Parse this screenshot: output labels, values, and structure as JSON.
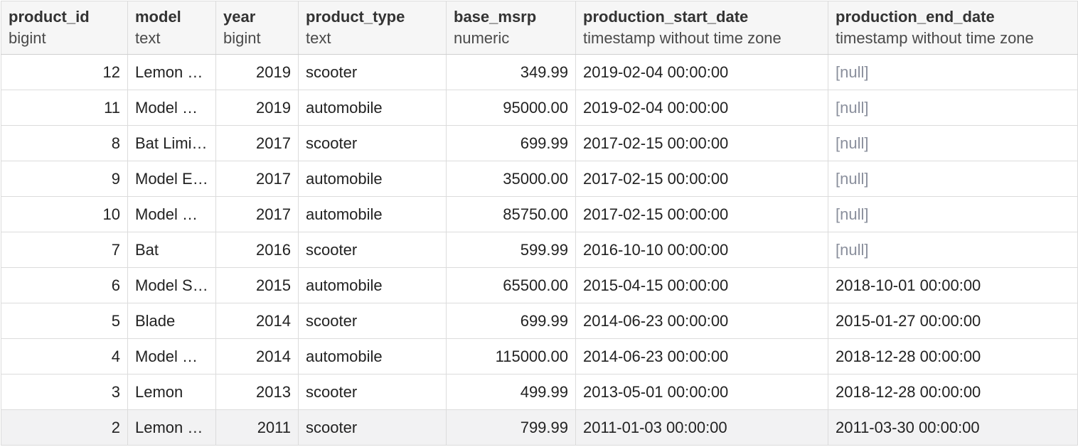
{
  "columns": [
    {
      "name": "product_id",
      "type": "bigint"
    },
    {
      "name": "model",
      "type": "text"
    },
    {
      "name": "year",
      "type": "bigint"
    },
    {
      "name": "product_type",
      "type": "text"
    },
    {
      "name": "base_msrp",
      "type": "numeric"
    },
    {
      "name": "production_start_date",
      "type": "timestamp without time zone"
    },
    {
      "name": "production_end_date",
      "type": "timestamp without time zone"
    }
  ],
  "rows": [
    [
      "12",
      "Lemon …",
      "2019",
      "scooter",
      "349.99",
      "2019-02-04 00:00:00",
      "[null]"
    ],
    [
      "11",
      "Model …",
      "2019",
      "automobile",
      "95000.00",
      "2019-02-04 00:00:00",
      "[null]"
    ],
    [
      "8",
      "Bat Limi…",
      "2017",
      "scooter",
      "699.99",
      "2017-02-15 00:00:00",
      "[null]"
    ],
    [
      "9",
      "Model E…",
      "2017",
      "automobile",
      "35000.00",
      "2017-02-15 00:00:00",
      "[null]"
    ],
    [
      "10",
      "Model …",
      "2017",
      "automobile",
      "85750.00",
      "2017-02-15 00:00:00",
      "[null]"
    ],
    [
      "7",
      "Bat",
      "2016",
      "scooter",
      "599.99",
      "2016-10-10 00:00:00",
      "[null]"
    ],
    [
      "6",
      "Model S…",
      "2015",
      "automobile",
      "65500.00",
      "2015-04-15 00:00:00",
      "2018-10-01 00:00:00"
    ],
    [
      "5",
      "Blade",
      "2014",
      "scooter",
      "699.99",
      "2014-06-23 00:00:00",
      "2015-01-27 00:00:00"
    ],
    [
      "4",
      "Model …",
      "2014",
      "automobile",
      "115000.00",
      "2014-06-23 00:00:00",
      "2018-12-28 00:00:00"
    ],
    [
      "3",
      "Lemon",
      "2013",
      "scooter",
      "499.99",
      "2013-05-01 00:00:00",
      "2018-12-28 00:00:00"
    ],
    [
      "2",
      "Lemon …",
      "2011",
      "scooter",
      "799.99",
      "2011-01-03 00:00:00",
      "2011-03-30 00:00:00"
    ]
  ]
}
